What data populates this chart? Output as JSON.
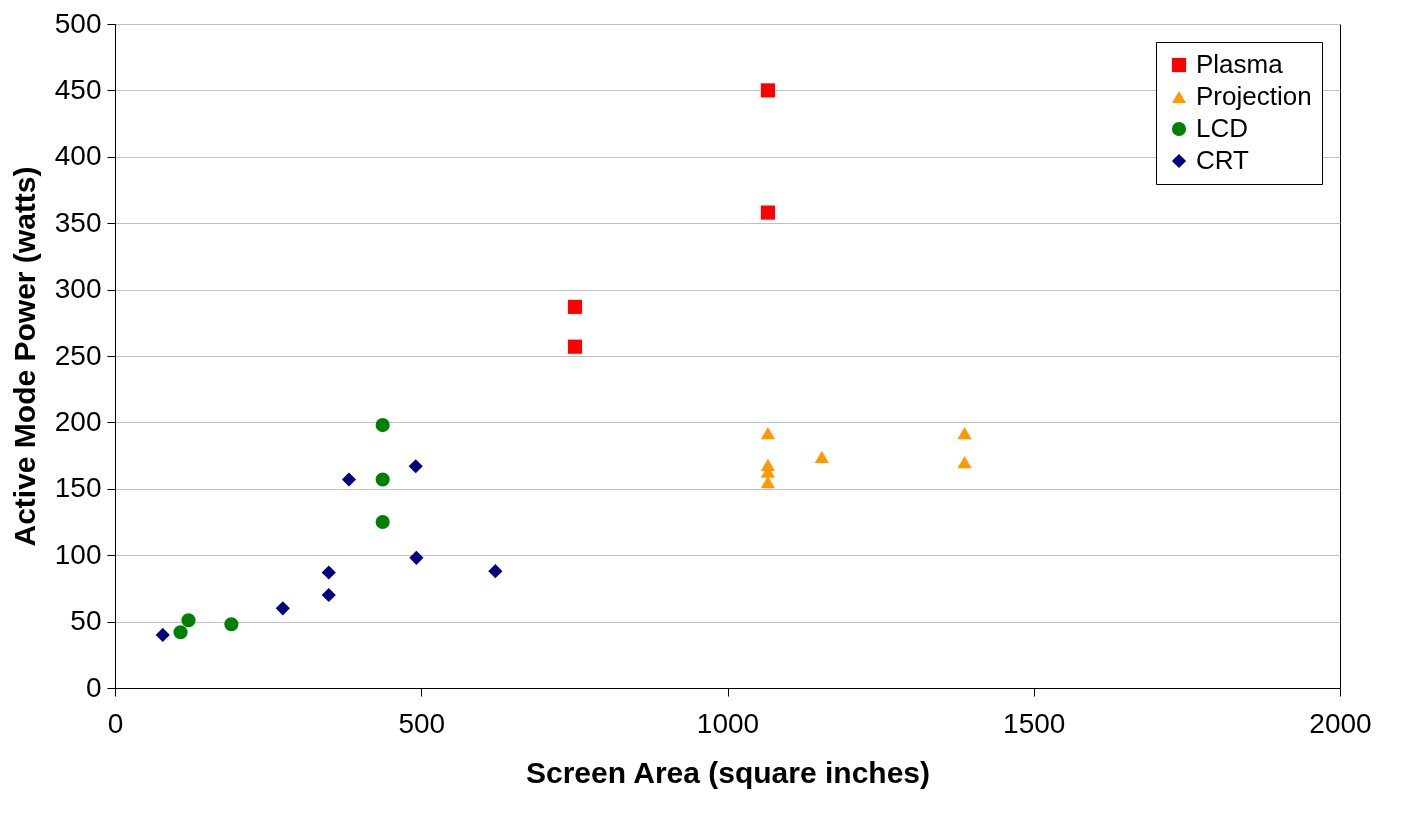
{
  "chart_data": {
    "type": "scatter",
    "xlabel": "Screen Area (square inches)",
    "ylabel": "Active Mode Power (watts)",
    "xlim": [
      0,
      2000
    ],
    "xticks": [
      0,
      500,
      1000,
      1500,
      2000
    ],
    "ylim": [
      0,
      500
    ],
    "yticks": [
      0,
      50,
      100,
      150,
      200,
      250,
      300,
      350,
      400,
      450,
      500
    ],
    "grid": "y",
    "legend": "top right",
    "series": [
      {
        "name": "Plasma",
        "color": "#ff0000",
        "marker": "square",
        "x": [
          751,
          751,
          1066,
          1066
        ],
        "values": [
          287,
          257,
          450,
          358
        ]
      },
      {
        "name": "Projection",
        "color": "#ff9900",
        "marker": "triangle",
        "x": [
          1066,
          1066,
          1066,
          1066,
          1154,
          1387,
          1387
        ],
        "values": [
          192,
          168,
          163,
          155,
          174,
          192,
          170
        ]
      },
      {
        "name": "LCD",
        "color": "#008000",
        "marker": "circle",
        "x": [
          437,
          437,
          437,
          107,
          120,
          190
        ],
        "values": [
          198,
          157,
          125,
          42,
          51,
          48
        ]
      },
      {
        "name": "CRT",
        "color": "#000080",
        "marker": "diamond",
        "x": [
          78,
          274,
          349,
          349,
          382,
          491,
          492,
          621
        ],
        "values": [
          40,
          60,
          87,
          70,
          157,
          167,
          98,
          88
        ]
      }
    ]
  }
}
